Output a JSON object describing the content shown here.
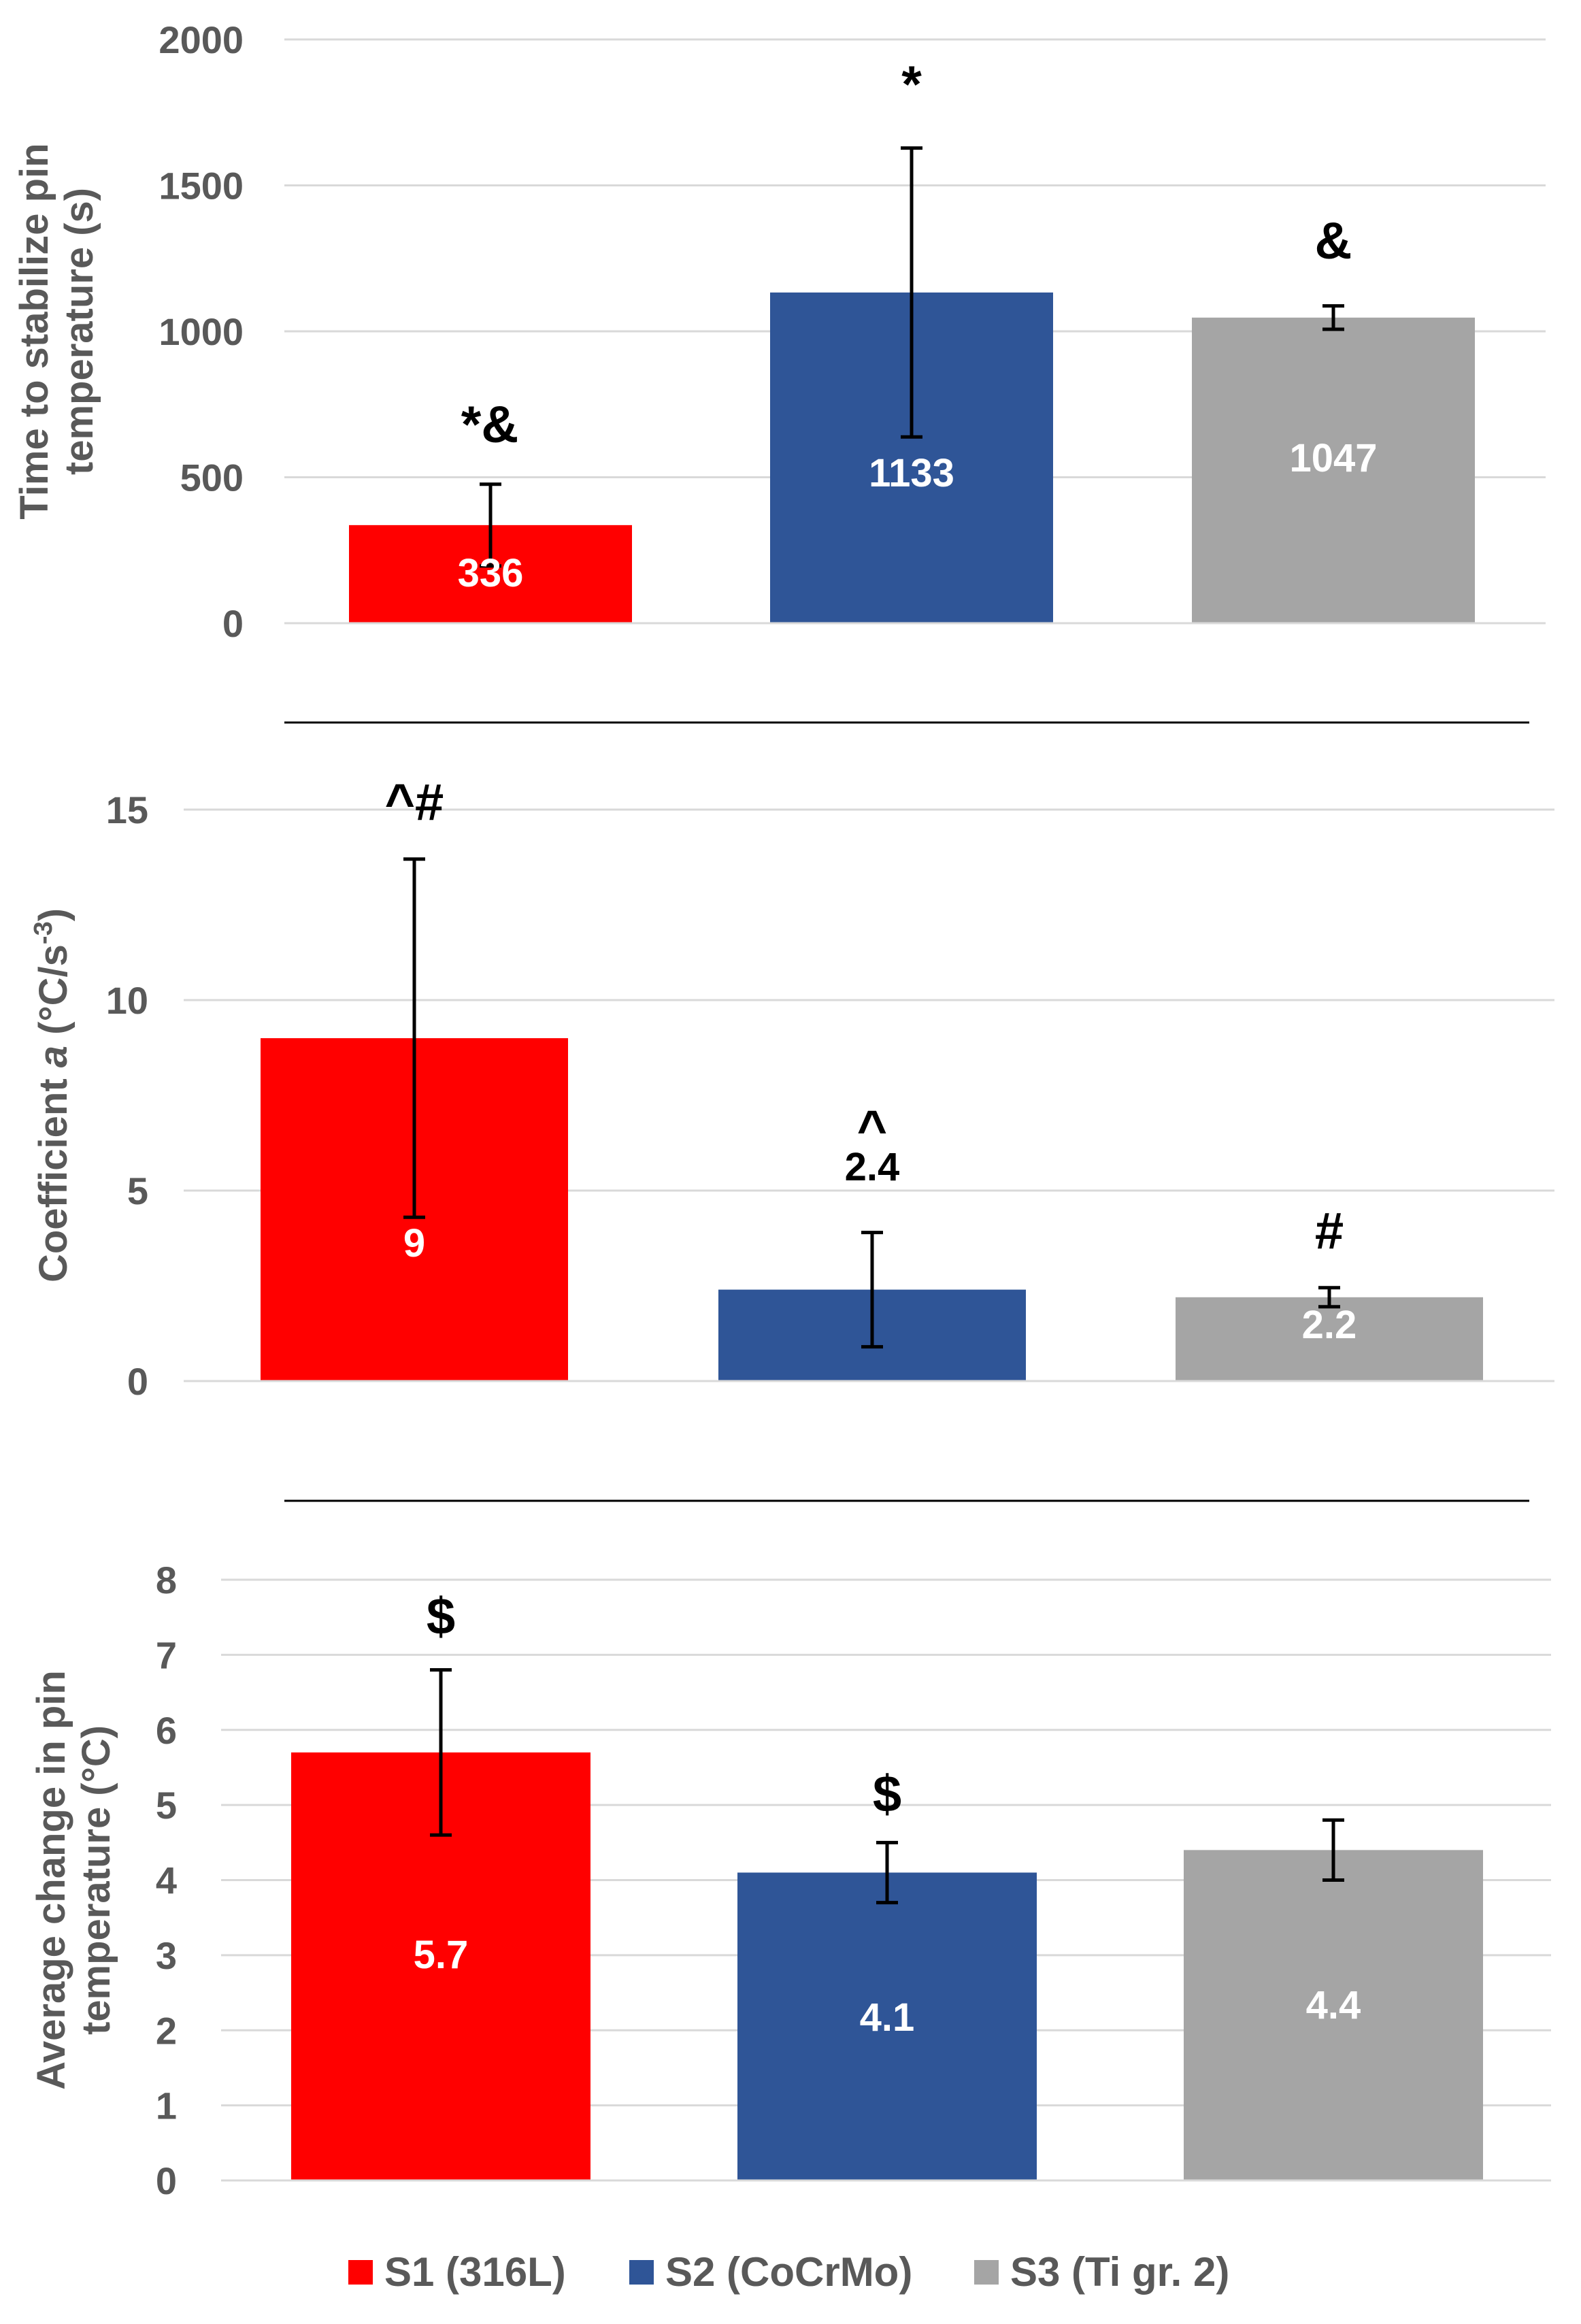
{
  "chart_data": [
    {
      "type": "bar",
      "ylabel": [
        "Time to stabilize pin",
        "temperature (s)"
      ],
      "ylim": [
        0,
        2000
      ],
      "yticks": [
        0,
        500,
        1000,
        1500,
        2000
      ],
      "categories": [
        "S1 (316L)",
        "S2 (CoCrMo)",
        "S3 (Ti gr. 2)"
      ],
      "values": [
        336,
        1133,
        1047
      ],
      "errors": [
        140,
        495,
        40
      ],
      "data_labels": [
        "336",
        "1133",
        "1047"
      ],
      "annotations": [
        "*&",
        "*",
        "&"
      ],
      "grid": true
    },
    {
      "type": "bar",
      "ylabel_parts": {
        "pre": "Coefficient ",
        "ital": "a",
        "mid": " (°C/s",
        "sup": "-3",
        "post": ")"
      },
      "ylim": [
        0,
        15
      ],
      "yticks": [
        0,
        5,
        10,
        15
      ],
      "categories": [
        "S1 (316L)",
        "S2 (CoCrMo)",
        "S3 (Ti gr. 2)"
      ],
      "values": [
        9,
        2.4,
        2.2
      ],
      "errors": [
        4.7,
        1.5,
        0.25
      ],
      "data_labels": [
        "9",
        "2.4",
        "2.2"
      ],
      "annotations": [
        "^#",
        "^",
        "#"
      ],
      "grid": true
    },
    {
      "type": "bar",
      "ylabel": [
        "Average change in pin",
        "temperature (°C)"
      ],
      "ylim": [
        0,
        8
      ],
      "yticks": [
        0,
        1,
        2,
        3,
        4,
        5,
        6,
        7,
        8
      ],
      "categories": [
        "S1 (316L)",
        "S2 (CoCrMo)",
        "S3 (Ti gr. 2)"
      ],
      "values": [
        5.7,
        4.1,
        4.4
      ],
      "errors": [
        1.1,
        0.4,
        0.4
      ],
      "data_labels": [
        "5.7",
        "4.1",
        "4.4"
      ],
      "annotations": [
        "$",
        "$",
        ""
      ],
      "grid": true
    }
  ],
  "legend": [
    {
      "label": "S1 (316L)",
      "color": "#ff0000"
    },
    {
      "label": "S2 (CoCrMo)",
      "color": "#2f5597"
    },
    {
      "label": "S3 (Ti gr. 2)",
      "color": "#a5a5a5"
    }
  ],
  "series_colors": [
    "#ff0000",
    "#2f5597",
    "#a5a5a5"
  ]
}
